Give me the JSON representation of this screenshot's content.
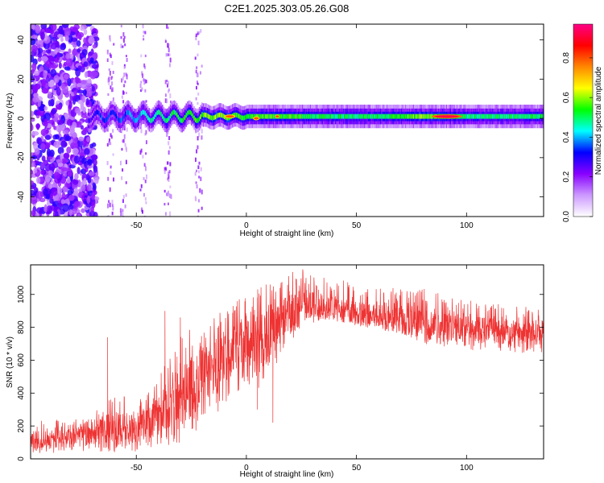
{
  "title": "C2E1.2025.303.05.26.G08",
  "chart_data": [
    {
      "type": "heatmap",
      "xlabel": "Height of straight line (km)",
      "ylabel": "Frequency (Hz)",
      "xlim": [
        -98,
        135
      ],
      "ylim": [
        -50,
        48
      ],
      "xticks": [
        -50,
        0,
        50,
        100
      ],
      "yticks": [
        -40,
        -20,
        0,
        20,
        40
      ],
      "colorbar": {
        "label": "Normalized spectral amplitude",
        "range": [
          0.0,
          0.97
        ],
        "ticks": [
          0.0,
          0.2,
          0.4,
          0.6,
          0.8
        ],
        "tick_labels": [
          "0.0",
          "0.2",
          "0.4",
          "0.6",
          "0.8"
        ],
        "colormap": [
          "#ffffff",
          "#cc99ff",
          "#8800ff",
          "#0000ff",
          "#00ffff",
          "#00ff00",
          "#ffff00",
          "#ff8800",
          "#ff0000",
          "#ff0088"
        ]
      },
      "ridge": {
        "frequency_center_hz": 1,
        "x_points": [
          -72,
          -65,
          -55,
          -45,
          -35,
          -25,
          -15,
          0,
          20,
          40,
          60,
          80,
          100,
          120,
          135
        ],
        "amplitude": [
          0.25,
          0.35,
          0.35,
          0.45,
          0.5,
          0.55,
          0.6,
          0.55,
          0.55,
          0.5,
          0.5,
          0.6,
          0.5,
          0.5,
          0.5
        ],
        "peak_zones": [
          {
            "x_range": [
              84,
              98
            ],
            "frequency_hz": 1,
            "amplitude": 0.92
          },
          {
            "x_range": [
              -10,
              -5
            ],
            "frequency_hz": 1,
            "amplitude": 0.8
          },
          {
            "x_range": [
              3,
              6
            ],
            "frequency_hz": 0,
            "amplitude": 0.8
          },
          {
            "x_range": [
              13,
              15
            ],
            "frequency_hz": 1,
            "amplitude": 0.8
          }
        ]
      },
      "noise_region": {
        "x_range": [
          -98,
          -68
        ],
        "frequency_range_hz": [
          -50,
          48
        ],
        "amplitude_range": [
          0.1,
          0.3
        ]
      }
    },
    {
      "type": "line",
      "xlabel": "Height of straight line (km)",
      "ylabel": "SNR (10 * v/v)",
      "xlim": [
        -98,
        135
      ],
      "ylim": [
        0,
        1180
      ],
      "xticks": [
        -50,
        0,
        50,
        100
      ],
      "yticks": [
        0,
        200,
        400,
        600,
        800,
        1000
      ],
      "color": "#ee3333",
      "envelope": {
        "x": [
          -98,
          -90,
          -80,
          -70,
          -65,
          -60,
          -55,
          -50,
          -45,
          -40,
          -35,
          -30,
          -25,
          -20,
          -15,
          -10,
          -5,
          0,
          5,
          10,
          15,
          20,
          25,
          30,
          35,
          40,
          50,
          60,
          70,
          80,
          90,
          100,
          110,
          120,
          135
        ],
        "low": [
          40,
          30,
          40,
          50,
          40,
          40,
          50,
          40,
          50,
          60,
          80,
          100,
          120,
          200,
          250,
          320,
          400,
          450,
          420,
          500,
          600,
          700,
          800,
          820,
          840,
          830,
          800,
          780,
          760,
          700,
          680,
          660,
          660,
          640,
          640
        ],
        "high": [
          230,
          240,
          250,
          260,
          350,
          420,
          380,
          360,
          400,
          480,
          640,
          760,
          820,
          860,
          880,
          920,
          960,
          1000,
          1050,
          1080,
          1100,
          1140,
          1160,
          1140,
          1120,
          1110,
          1080,
          1060,
          1040,
          1040,
          1000,
          970,
          950,
          940,
          920
        ],
        "mean": [
          120,
          115,
          130,
          145,
          170,
          200,
          190,
          185,
          210,
          260,
          330,
          380,
          440,
          520,
          560,
          620,
          680,
          720,
          700,
          770,
          830,
          880,
          930,
          940,
          930,
          920,
          880,
          860,
          840,
          820,
          800,
          790,
          780,
          770,
          770
        ],
        "sharp_spikes": [
          {
            "x": -63,
            "value": 740
          },
          {
            "x": -37,
            "value": 900
          },
          {
            "x": -30,
            "value": 860
          },
          {
            "x": 9,
            "value": 1060
          },
          {
            "x": 12,
            "value": 220
          },
          {
            "x": 5,
            "value": 300
          }
        ]
      }
    }
  ]
}
